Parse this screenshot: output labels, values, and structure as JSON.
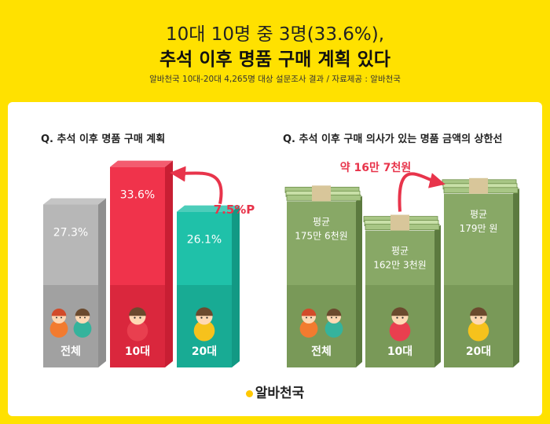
{
  "header": {
    "title_line1": "10대 10명 중 3명(33.6%),",
    "title_line2": "추석 이후 명품 구매 계획 있다",
    "source": "알바천국 10대-20대 4,265명 대상 설문조사 결과 / 자료제공 : 알바천국"
  },
  "left": {
    "question": "Q. 추석 이후 명품 구매 계획",
    "diff_label": "7.5%P",
    "bars": [
      {
        "group": "전체",
        "value_label": "27.3%",
        "color": "#b7b7b7",
        "dark": "#8f8f8f"
      },
      {
        "group": "10대",
        "value_label": "33.6%",
        "color": "#f0334b",
        "dark": "#c81e33"
      },
      {
        "group": "20대",
        "value_label": "26.1%",
        "color": "#1fc1a9",
        "dark": "#129984"
      }
    ]
  },
  "right": {
    "question": "Q. 추석 이후 구매 의사가 있는 명품 금액의 상한선",
    "diff_label": "약 16만 7천원",
    "bars": [
      {
        "group": "전체",
        "line1": "평균",
        "line2": "175만 6천원"
      },
      {
        "group": "10대",
        "line1": "평균",
        "line2": "162만 3천원"
      },
      {
        "group": "20대",
        "line1": "평균",
        "line2": "179만 원"
      }
    ]
  },
  "chart_data": [
    {
      "type": "bar",
      "title": "Q. 추석 이후 명품 구매 계획",
      "categories": [
        "전체",
        "10대",
        "20대"
      ],
      "values": [
        27.3,
        33.6,
        26.1
      ],
      "annotation": "7.5%P"
    },
    {
      "type": "bar",
      "title": "Q. 추석 이후 구매 의사가 있는 명품 금액의 상한선",
      "categories": [
        "전체",
        "10대",
        "20대"
      ],
      "values": [
        175.6,
        162.3,
        179
      ],
      "annotation": "약 16만 7천원"
    }
  ],
  "brand": "알바천국"
}
